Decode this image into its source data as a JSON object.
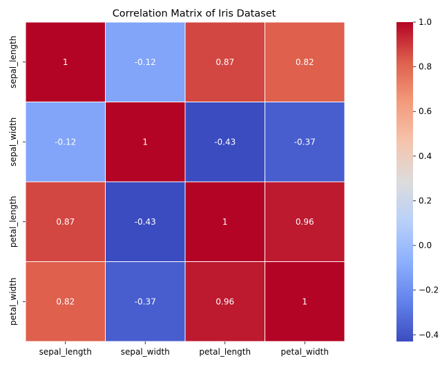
{
  "chart_data": {
    "type": "heatmap",
    "title": "Correlation Matrix of Iris Dataset",
    "x_categories": [
      "sepal_length",
      "sepal_width",
      "petal_length",
      "petal_width"
    ],
    "y_categories": [
      "sepal_length",
      "sepal_width",
      "petal_length",
      "petal_width"
    ],
    "cell_labels": [
      [
        "1",
        "-0.12",
        "0.87",
        "0.82"
      ],
      [
        "-0.12",
        "1",
        "-0.43",
        "-0.37"
      ],
      [
        "0.87",
        "-0.43",
        "1",
        "0.96"
      ],
      [
        "0.82",
        "-0.37",
        "0.96",
        "1"
      ]
    ],
    "values": [
      [
        1.0,
        -0.12,
        0.87,
        0.82
      ],
      [
        -0.12,
        1.0,
        -0.43,
        -0.37
      ],
      [
        0.87,
        -0.43,
        1.0,
        0.96
      ],
      [
        0.82,
        -0.37,
        0.96,
        1.0
      ]
    ],
    "colormap": "coolwarm",
    "vmin": -0.43,
    "vmax": 1.0,
    "colorbar": {
      "ticks": [
        -0.4,
        -0.2,
        0.0,
        0.2,
        0.4,
        0.6,
        0.8,
        1.0
      ],
      "tick_labels": [
        "−0.4",
        "−0.2",
        "0.0",
        "0.2",
        "0.4",
        "0.6",
        "0.8",
        "1.0"
      ],
      "placement": "right"
    },
    "grid": false,
    "cell_border_color": "#ffffff",
    "annotation_color": "#ffffff"
  }
}
